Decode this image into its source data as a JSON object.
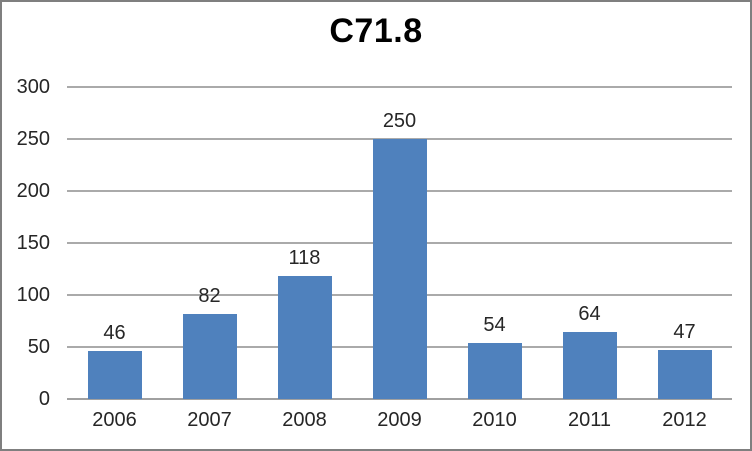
{
  "chart_data": {
    "type": "bar",
    "title": "C71.8",
    "categories": [
      "2006",
      "2007",
      "2008",
      "2009",
      "2010",
      "2011",
      "2012"
    ],
    "values": [
      46,
      82,
      118,
      250,
      54,
      64,
      47
    ],
    "xlabel": "",
    "ylabel": "",
    "ylim": [
      0,
      300
    ],
    "ytick_step": 50,
    "yticks": [
      0,
      50,
      100,
      150,
      200,
      250,
      300
    ],
    "grid": true,
    "legend_position": "none",
    "bar_color": "#4f81bd",
    "gridline_color": "#aaaaaa",
    "axis_line_color": "#a0a0a0",
    "label_color": "#262626",
    "title_color": "#000000",
    "figure_border_color": "#7f7f7f",
    "background_color": "#ffffff"
  }
}
